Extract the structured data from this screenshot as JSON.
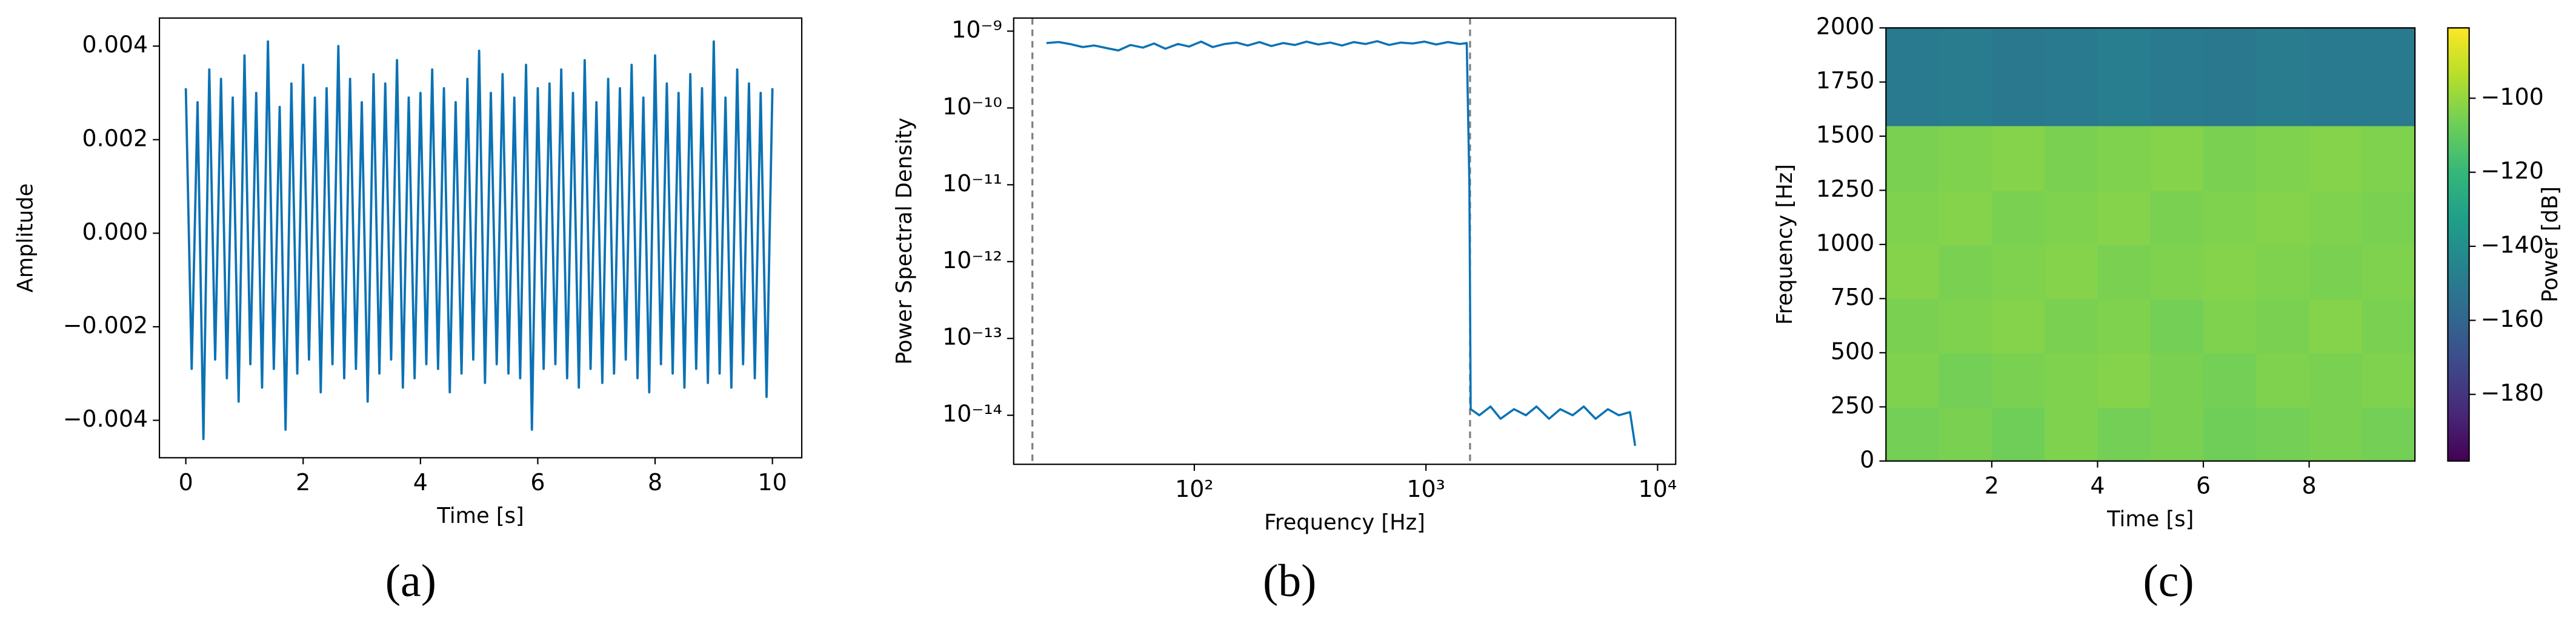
{
  "chart_data": [
    {
      "type": "line",
      "caption": "(a)",
      "xlabel": "Time [s]",
      "ylabel": "Amplitude",
      "xlim": [
        -0.45,
        10.5
      ],
      "ylim": [
        -0.0048,
        0.0046
      ],
      "xticks": [
        0,
        2,
        4,
        6,
        8,
        10
      ],
      "yticks": [
        0.004,
        0.002,
        {
          "value": 0,
          "label": "0.000"
        },
        {
          "value": -0.002,
          "label": "−0.002"
        },
        {
          "value": -0.004,
          "label": "−0.004"
        }
      ],
      "x": [
        0,
        0.1,
        0.2,
        0.3,
        0.4,
        0.5,
        0.6,
        0.7,
        0.8,
        0.9,
        1,
        1.1,
        1.2,
        1.3,
        1.4,
        1.5,
        1.6,
        1.7,
        1.8,
        1.9,
        2,
        2.1,
        2.2,
        2.3,
        2.4,
        2.5,
        2.6,
        2.7,
        2.8,
        2.9,
        3,
        3.1,
        3.2,
        3.3,
        3.4,
        3.5,
        3.6,
        3.7,
        3.8,
        3.9,
        4,
        4.1,
        4.2,
        4.3,
        4.4,
        4.5,
        4.6,
        4.7,
        4.8,
        4.9,
        5,
        5.1,
        5.2,
        5.3,
        5.4,
        5.5,
        5.6,
        5.7,
        5.8,
        5.9,
        6,
        6.1,
        6.2,
        6.3,
        6.4,
        6.5,
        6.6,
        6.7,
        6.8,
        6.9,
        7,
        7.1,
        7.2,
        7.3,
        7.4,
        7.5,
        7.6,
        7.7,
        7.8,
        7.9,
        8,
        8.1,
        8.2,
        8.3,
        8.4,
        8.5,
        8.6,
        8.7,
        8.8,
        8.9,
        9,
        9.1,
        9.2,
        9.3,
        9.4,
        9.5,
        9.6,
        9.7,
        9.8,
        9.9,
        10
      ],
      "series": [
        {
          "color": "#0b72b5",
          "values": [
            0.0031,
            -0.0029,
            0.0028,
            -0.0044,
            0.0035,
            -0.0027,
            0.0033,
            -0.0031,
            0.0029,
            -0.0036,
            0.0038,
            -0.0028,
            0.003,
            -0.0033,
            0.0041,
            -0.0029,
            0.0027,
            -0.0042,
            0.0032,
            -0.003,
            0.0036,
            -0.0027,
            0.0029,
            -0.0034,
            0.0031,
            -0.0028,
            0.004,
            -0.0031,
            0.0033,
            -0.0029,
            0.0028,
            -0.0036,
            0.0034,
            -0.003,
            0.0032,
            -0.0027,
            0.0037,
            -0.0033,
            0.0029,
            -0.0031,
            0.003,
            -0.0028,
            0.0035,
            -0.0029,
            0.0031,
            -0.0034,
            0.0028,
            -0.003,
            0.0033,
            -0.0027,
            0.0039,
            -0.0032,
            0.003,
            -0.0028,
            0.0034,
            -0.003,
            0.0029,
            -0.0031,
            0.0036,
            -0.0042,
            0.0031,
            -0.0029,
            0.0032,
            -0.0028,
            0.0035,
            -0.0031,
            0.003,
            -0.0033,
            0.0037,
            -0.0029,
            0.0028,
            -0.0032,
            0.0033,
            -0.003,
            0.0031,
            -0.0027,
            0.0036,
            -0.0031,
            0.0029,
            -0.0034,
            0.0038,
            -0.0028,
            0.0032,
            -0.003,
            0.003,
            -0.0033,
            0.0034,
            -0.0029,
            0.0031,
            -0.0032,
            0.0041,
            -0.003,
            0.0029,
            -0.0033,
            0.0035,
            -0.0028,
            0.0032,
            -0.0031,
            0.003,
            -0.0035,
            0.0031
          ]
        }
      ]
    },
    {
      "type": "line",
      "caption": "(b)",
      "xlabel": "Frequency [Hz]",
      "ylabel": "Power Spectral Density",
      "xscale": "log",
      "yscale": "log",
      "xlim": [
        16.6,
        11970
      ],
      "ylim": [
        2.3e-15,
        1.48e-09
      ],
      "xticks": [
        {
          "value": 100,
          "label": "10²"
        },
        {
          "value": 1000,
          "label": "10³"
        },
        {
          "value": 10000,
          "label": "10⁴"
        }
      ],
      "yticks": [
        {
          "value": 1e-09,
          "label": "10⁻⁹"
        },
        {
          "value": 1e-10,
          "label": "10⁻¹⁰"
        },
        {
          "value": 1e-11,
          "label": "10⁻¹¹"
        },
        {
          "value": 1e-12,
          "label": "10⁻¹²"
        },
        {
          "value": 1e-13,
          "label": "10⁻¹³"
        },
        {
          "value": 1e-14,
          "label": "10⁻¹⁴"
        }
      ],
      "vlines": [
        20,
        1550
      ],
      "vline_color": "#808080",
      "x": [
        23,
        26,
        29,
        33,
        37,
        42,
        47,
        53,
        60,
        67,
        75,
        85,
        95,
        107,
        120,
        135,
        152,
        170,
        191,
        215,
        242,
        272,
        305,
        343,
        386,
        434,
        488,
        548,
        616,
        693,
        779,
        876,
        985,
        1107,
        1245,
        1400,
        1500,
        1540,
        1560,
        1700,
        1900,
        2100,
        2400,
        2700,
        3000,
        3400,
        3800,
        4300,
        4800,
        5400,
        6100,
        6800,
        7600,
        8000
      ],
      "series": [
        {
          "color": "#0b72b5",
          "values": [
            7e-10,
            7.2e-10,
            6.8e-10,
            6.2e-10,
            6.5e-10,
            6e-10,
            5.6e-10,
            6.6e-10,
            6.1e-10,
            6.9e-10,
            5.9e-10,
            6.8e-10,
            6.3e-10,
            7.3e-10,
            6.2e-10,
            6.8e-10,
            7.1e-10,
            6.5e-10,
            7.2e-10,
            6.4e-10,
            7e-10,
            6.6e-10,
            7.3e-10,
            6.7e-10,
            7.1e-10,
            6.5e-10,
            7.2e-10,
            6.8e-10,
            7.4e-10,
            6.6e-10,
            7.1e-10,
            6.9e-10,
            7.3e-10,
            6.7e-10,
            7.2e-10,
            6.8e-10,
            7e-10,
            1e-11,
            1.2e-14,
            1e-14,
            1.3e-14,
            9e-15,
            1.2e-14,
            1e-14,
            1.3e-14,
            9e-15,
            1.2e-14,
            1e-14,
            1.3e-14,
            9e-15,
            1.2e-14,
            1e-14,
            1.1e-14,
            4e-15
          ]
        }
      ]
    },
    {
      "type": "heatmap",
      "caption": "(c)",
      "xlabel": "Time [s]",
      "ylabel": "Frequency [Hz]",
      "xlim": [
        0,
        10
      ],
      "ylim": [
        0,
        2000
      ],
      "xticks": [
        2,
        4,
        6,
        8
      ],
      "yticks": [
        0,
        250,
        500,
        750,
        1000,
        1250,
        1500,
        1750,
        2000
      ],
      "x_edges": [
        0,
        1,
        2,
        3,
        4,
        5,
        6,
        7,
        8,
        9,
        10
      ],
      "y_edges": [
        0,
        250,
        500,
        750,
        1000,
        1250,
        1550,
        2000
      ],
      "colormap": "viridis",
      "clim": [
        -198,
        -81
      ],
      "colorbar_label": "Power [dB]",
      "colorbar_ticks": [
        {
          "value": -100,
          "label": "−100"
        },
        {
          "value": -120,
          "label": "−120"
        },
        {
          "value": -140,
          "label": "−140"
        },
        {
          "value": -160,
          "label": "−160"
        },
        {
          "value": -180,
          "label": "−180"
        }
      ],
      "values": [
        [
          -106,
          -105,
          -107,
          -104,
          -106,
          -105,
          -107,
          -106,
          -105,
          -106
        ],
        [
          -104,
          -106,
          -105,
          -104,
          -103,
          -105,
          -106,
          -104,
          -105,
          -104
        ],
        [
          -105,
          -104,
          -103,
          -105,
          -104,
          -106,
          -104,
          -105,
          -103,
          -105
        ],
        [
          -103,
          -105,
          -104,
          -103,
          -105,
          -104,
          -103,
          -104,
          -105,
          -104
        ],
        [
          -104,
          -103,
          -105,
          -104,
          -103,
          -105,
          -104,
          -103,
          -104,
          -105
        ],
        [
          -105,
          -104,
          -103,
          -105,
          -104,
          -103,
          -105,
          -104,
          -103,
          -104
        ],
        [
          -150,
          -149,
          -151,
          -150,
          -148,
          -150,
          -151,
          -149,
          -150,
          -150
        ]
      ]
    }
  ]
}
